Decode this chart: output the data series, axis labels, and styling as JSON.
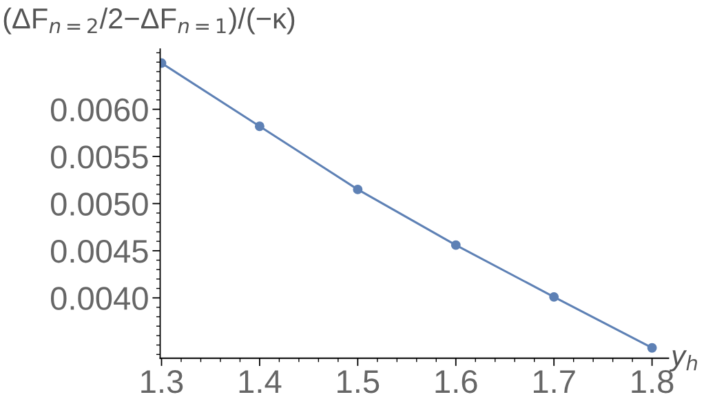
{
  "chart_data": {
    "type": "line",
    "ylabel": "(ΔF$_{n=2}$/2−ΔF$_{n=1}$)/(−κ)",
    "xlabel": "y$_{h}$",
    "x": [
      1.3,
      1.4,
      1.5,
      1.6,
      1.7,
      1.8
    ],
    "series": [
      {
        "color": "#5e81b5",
        "values": [
          0.00649,
          0.00582,
          0.00515,
          0.00456,
          0.00401,
          0.00347
        ]
      }
    ],
    "marker": "circle",
    "line_style": "solid",
    "grid": false,
    "legend": false,
    "xlim": [
      1.2986,
      1.8168
    ],
    "ylim": [
      0.00336,
      0.00664
    ],
    "xticks": [
      1.3,
      1.4,
      1.5,
      1.6,
      1.7,
      1.8
    ],
    "yticks": [
      {
        "value": 0.004,
        "label": "0.0040"
      },
      {
        "value": 0.0045,
        "label": "0.0045"
      },
      {
        "value": 0.005,
        "label": "0.0050"
      },
      {
        "value": 0.0055,
        "label": "0.0055"
      },
      {
        "value": 0.006,
        "label": "0.0060"
      }
    ]
  }
}
